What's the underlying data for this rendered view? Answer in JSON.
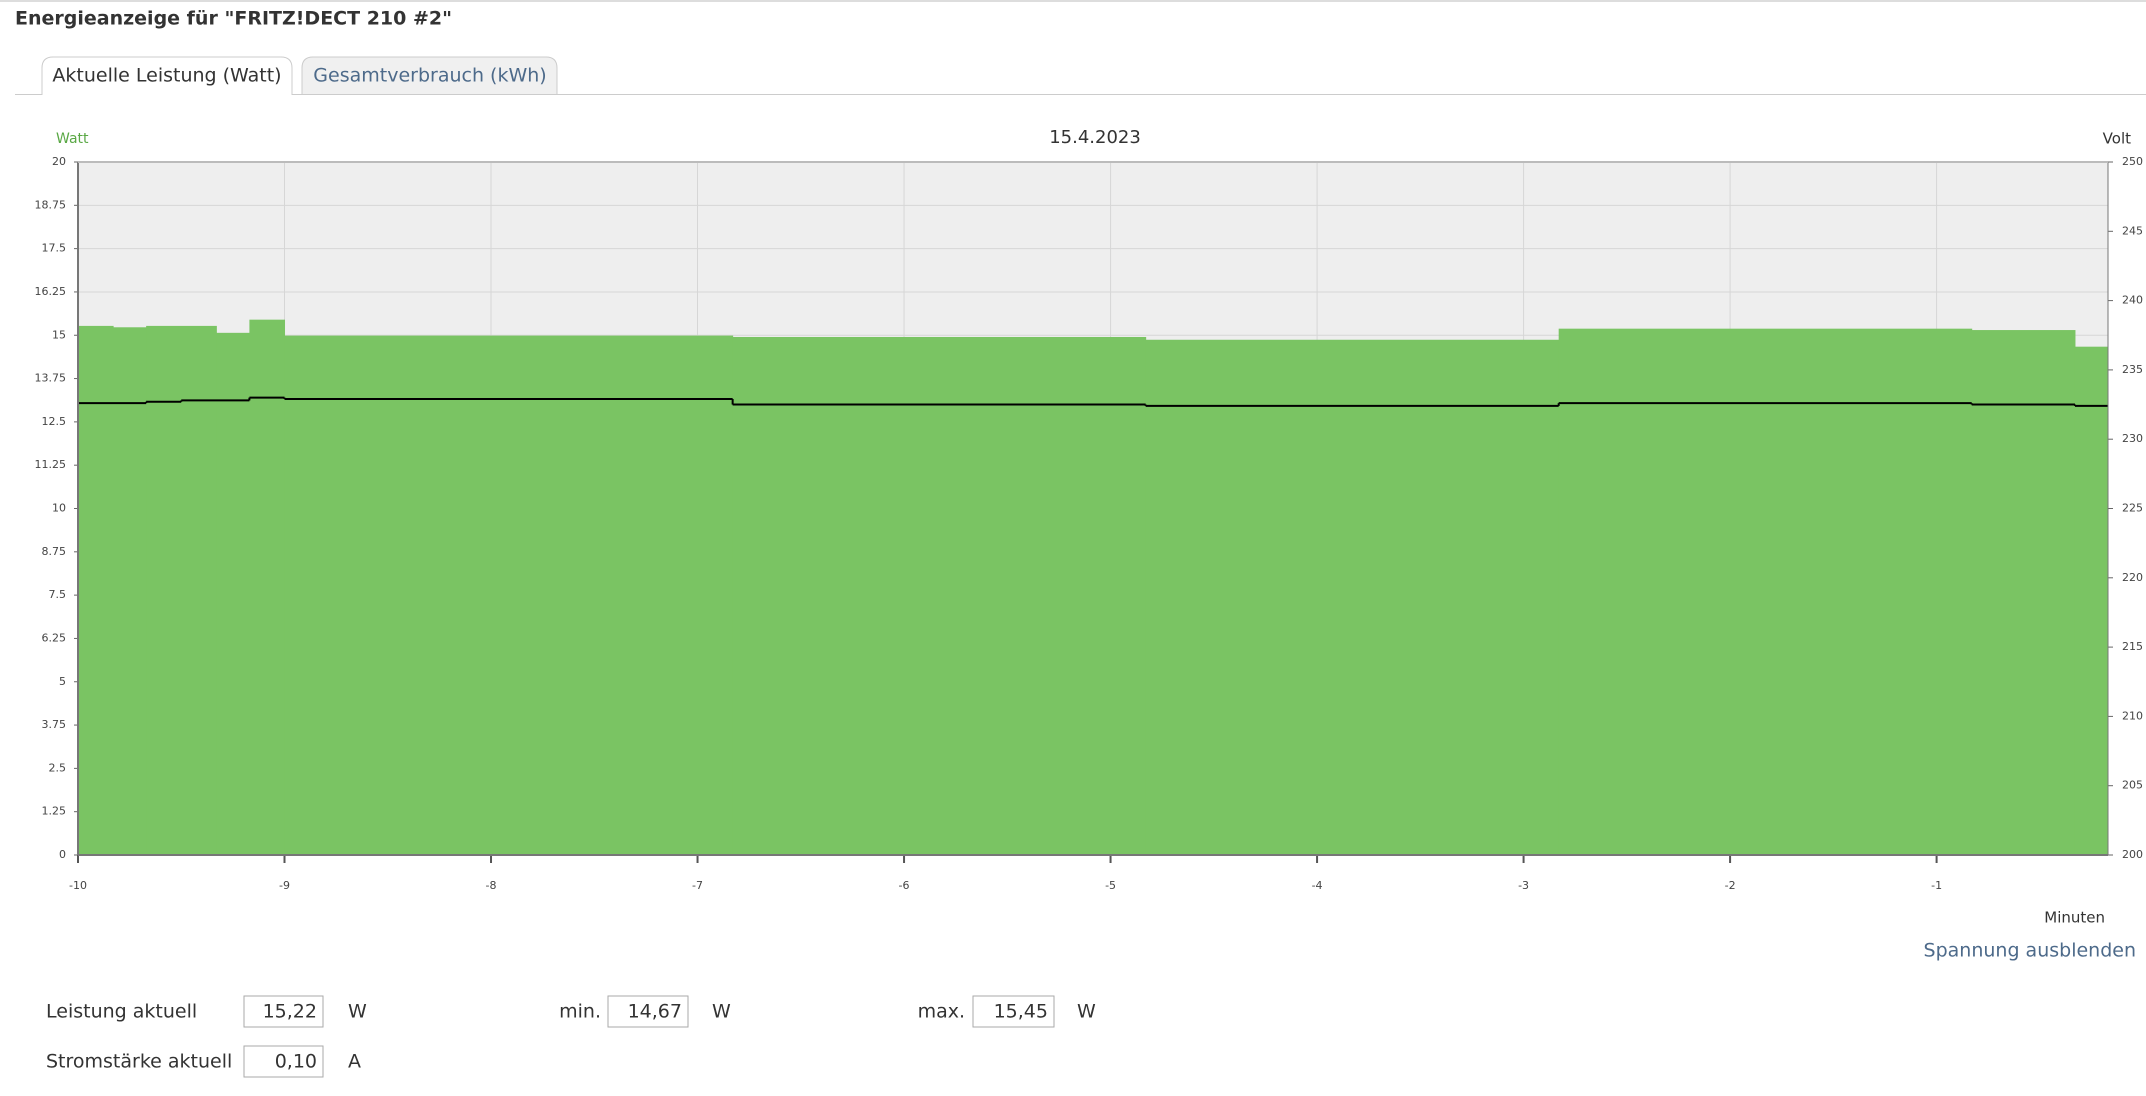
{
  "header": {
    "title": "Energieanzeige für \"FRITZ!DECT 210 #2\""
  },
  "tabs": [
    "Aktuelle Leistung (Watt)",
    "Gesamtverbrauch (kWh)"
  ],
  "chart_data": {
    "type": "step-area",
    "title": "15.4.2023",
    "ylabel": "Watt",
    "y2label": "Volt",
    "xlabel": "Minuten",
    "xlim": [
      -10,
      -0.17
    ],
    "xticks": [
      -10,
      -9,
      -8,
      -7,
      -6,
      -5,
      -4,
      -3,
      -2,
      -1
    ],
    "ylim": [
      0,
      20
    ],
    "yticks": [
      0,
      1.25,
      2.5,
      3.75,
      5,
      6.25,
      7.5,
      8.75,
      10,
      11.25,
      12.5,
      13.75,
      15,
      16.25,
      17.5,
      18.75,
      20
    ],
    "y2lim": [
      200,
      250
    ],
    "y2ticks": [
      200,
      205,
      210,
      215,
      220,
      225,
      230,
      235,
      240,
      245,
      250
    ],
    "grid": true,
    "background": "#eeeeee",
    "series": [
      {
        "color": "#7ac463",
        "x": [
          -10,
          -9.83,
          -9.67,
          -9.33,
          -9.17,
          -9,
          -6.83,
          -4.83,
          -2.83,
          -0.83,
          -0.33
        ],
        "values": [
          15.27,
          15.23,
          15.27,
          15.07,
          15.45,
          14.99,
          14.95,
          14.87,
          15.19,
          15.15,
          14.67
        ]
      },
      {
        "color": "#000000",
        "axis": "y2",
        "x": [
          -10,
          -9.67,
          -9.5,
          -9.17,
          -9,
          -6.83,
          -4.83,
          -2.83,
          -0.83,
          -0.33
        ],
        "values": [
          232.6,
          232.7,
          232.8,
          233.0,
          232.9,
          232.5,
          232.4,
          232.6,
          232.5,
          232.4
        ]
      }
    ]
  },
  "link": "Spannung ausblenden",
  "stats": {
    "power_label": "Leistung aktuell",
    "power_value": "15,22",
    "power_unit": "W",
    "min_label": "min.",
    "min_value": "14,67",
    "min_unit": "W",
    "max_label": "max.",
    "max_value": "15,45",
    "max_unit": "W",
    "current_label": "Stromstärke aktuell",
    "current_value": "0,10",
    "current_unit": "A"
  }
}
